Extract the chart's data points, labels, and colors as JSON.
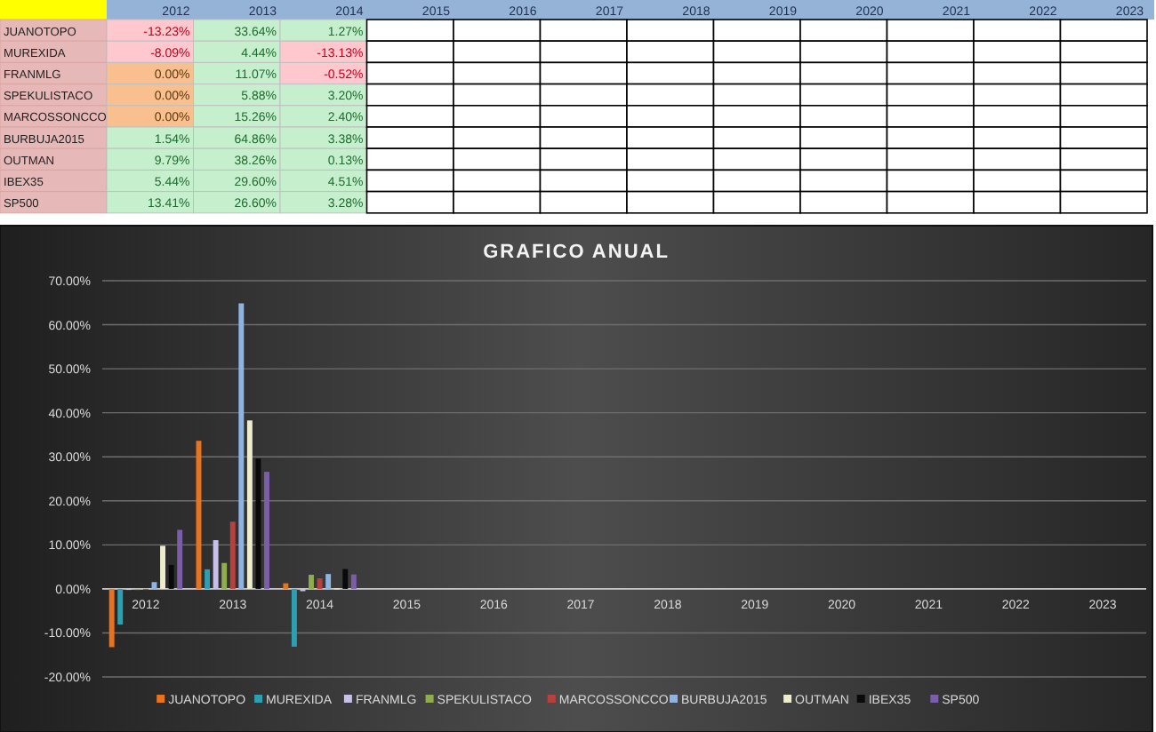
{
  "chart_data": {
    "type": "bar",
    "title": "GRAFICO ANUAL",
    "categories": [
      "2012",
      "2013",
      "2014",
      "2015",
      "2016",
      "2017",
      "2018",
      "2019",
      "2020",
      "2021",
      "2022",
      "2023"
    ],
    "series": [
      {
        "name": "JUANOTOPO",
        "color": "#e8731c",
        "values": [
          -13.23,
          33.64,
          1.27,
          null,
          null,
          null,
          null,
          null,
          null,
          null,
          null,
          null
        ],
        "value_labels": [
          "-13.23%",
          "33.64%",
          "1.27%",
          null,
          null,
          null,
          null,
          null,
          null,
          null,
          null,
          null
        ]
      },
      {
        "name": "MUREXIDA",
        "color": "#2e9fb0",
        "values": [
          -8.09,
          4.44,
          -13.13,
          null,
          null,
          null,
          null,
          null,
          null,
          null,
          null,
          null
        ],
        "value_labels": [
          "-8.09%",
          "4.44%",
          "-13.13%",
          null,
          null,
          null,
          null,
          null,
          null,
          null,
          null,
          null
        ]
      },
      {
        "name": "FRANMLG",
        "color": "#c8c0e8",
        "values": [
          0,
          11.07,
          -0.52,
          null,
          null,
          null,
          null,
          null,
          null,
          null,
          null,
          null
        ],
        "value_labels": [
          "0.00%",
          "11.07%",
          "-0.52%",
          null,
          null,
          null,
          null,
          null,
          null,
          null,
          null,
          null
        ]
      },
      {
        "name": "SPEKULISTACO",
        "color": "#8fac4f",
        "values": [
          0,
          5.88,
          3.2,
          null,
          null,
          null,
          null,
          null,
          null,
          null,
          null,
          null
        ],
        "value_labels": [
          "0.00%",
          "5.88%",
          "3.20%",
          null,
          null,
          null,
          null,
          null,
          null,
          null,
          null,
          null
        ]
      },
      {
        "name": "MARCOSSONCCO",
        "color": "#b8403d",
        "values": [
          0,
          15.26,
          2.4,
          null,
          null,
          null,
          null,
          null,
          null,
          null,
          null,
          null
        ],
        "value_labels": [
          "0.00%",
          "15.26%",
          "2.40%",
          null,
          null,
          null,
          null,
          null,
          null,
          null,
          null,
          null
        ]
      },
      {
        "name": "BURBUJA2015",
        "color": "#8db4e2",
        "values": [
          1.54,
          64.86,
          3.38,
          null,
          null,
          null,
          null,
          null,
          null,
          null,
          null,
          null
        ],
        "value_labels": [
          "1.54%",
          "64.86%",
          "3.38%",
          null,
          null,
          null,
          null,
          null,
          null,
          null,
          null,
          null
        ]
      },
      {
        "name": "OUTMAN",
        "color": "#eeeccf",
        "values": [
          9.79,
          38.26,
          0.13,
          null,
          null,
          null,
          null,
          null,
          null,
          null,
          null,
          null
        ],
        "value_labels": [
          "9.79%",
          "38.26%",
          "0.13%",
          null,
          null,
          null,
          null,
          null,
          null,
          null,
          null,
          null
        ]
      },
      {
        "name": "IBEX35",
        "color": "#0a0a0a",
        "values": [
          5.44,
          29.6,
          4.51,
          null,
          null,
          null,
          null,
          null,
          null,
          null,
          null,
          null
        ],
        "value_labels": [
          "5.44%",
          "29.60%",
          "4.51%",
          null,
          null,
          null,
          null,
          null,
          null,
          null,
          null,
          null
        ]
      },
      {
        "name": "SP500",
        "color": "#7a5fa8",
        "values": [
          13.41,
          26.6,
          3.28,
          null,
          null,
          null,
          null,
          null,
          null,
          null,
          null,
          null
        ],
        "value_labels": [
          "13.41%",
          "26.60%",
          "3.28%",
          null,
          null,
          null,
          null,
          null,
          null,
          null,
          null,
          null
        ]
      }
    ],
    "ylim": [
      -20,
      70
    ],
    "yticks": [
      {
        "value": -20,
        "label": "-20.00%"
      },
      {
        "value": -10,
        "label": "-10.00%"
      },
      {
        "value": 0,
        "label": "0.00%"
      },
      {
        "value": 10,
        "label": "10.00%"
      },
      {
        "value": 20,
        "label": "20.00%"
      },
      {
        "value": 30,
        "label": "30.00%"
      },
      {
        "value": 40,
        "label": "40.00%"
      },
      {
        "value": 50,
        "label": "50.00%"
      },
      {
        "value": 60,
        "label": "60.00%"
      },
      {
        "value": 70,
        "label": "70.00%"
      }
    ],
    "grid": "y",
    "legend": "bottom"
  }
}
